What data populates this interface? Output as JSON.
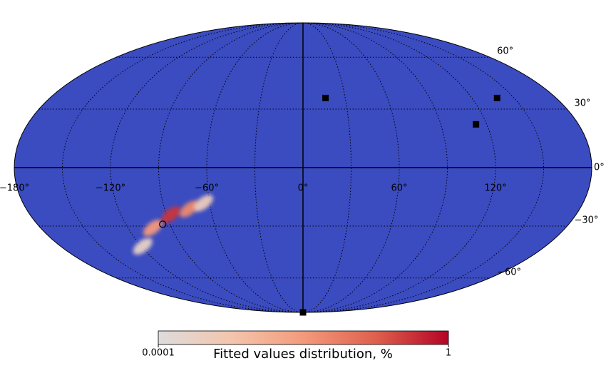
{
  "chart_data": {
    "type": "mollweide",
    "background_color": "#3b4cc0",
    "xlim": [
      -180,
      180
    ],
    "ylim": [
      -90,
      90
    ],
    "xticks": [
      {
        "value": -180,
        "label": "−180°"
      },
      {
        "value": -120,
        "label": "−120°"
      },
      {
        "value": -60,
        "label": "−60°"
      },
      {
        "value": 0,
        "label": "0°"
      },
      {
        "value": 60,
        "label": "60°"
      },
      {
        "value": 120,
        "label": "120°"
      }
    ],
    "yticks": [
      {
        "value": 60,
        "label": "60°"
      },
      {
        "value": 30,
        "label": "30°"
      },
      {
        "value": 0,
        "label": "0°"
      },
      {
        "value": -30,
        "label": "−30°"
      },
      {
        "value": -60,
        "label": "−60°"
      }
    ],
    "xgrid": [
      -150,
      -120,
      -90,
      -60,
      -30,
      0,
      30,
      60,
      90,
      120,
      150
    ],
    "grid": true,
    "distribution": {
      "lon": [
        -119,
        -103,
        -87,
        -74,
        -64
      ],
      "lat": [
        -41,
        -31,
        -24,
        -21,
        -18
      ],
      "values": [
        0.0003,
        0.01,
        0.3,
        0.02,
        0.0005
      ]
    },
    "series": [
      {
        "marker": "s",
        "color": "#000000",
        "x": [
          16,
          138,
          113,
          0
        ],
        "y": [
          36,
          36,
          22,
          -90
        ]
      },
      {
        "marker": "o",
        "color": "#000000",
        "x": [
          -95
        ],
        "y": [
          -29
        ]
      }
    ],
    "colorbar": {
      "label": "Fitted values distribution, %",
      "scale": "log",
      "lim": [
        0.0001,
        1
      ],
      "ticks": [
        0.0001,
        1
      ],
      "colors": [
        "#dddcdc",
        "#f4c5ad",
        "#f49a7b",
        "#de604d",
        "#b40426"
      ]
    }
  }
}
